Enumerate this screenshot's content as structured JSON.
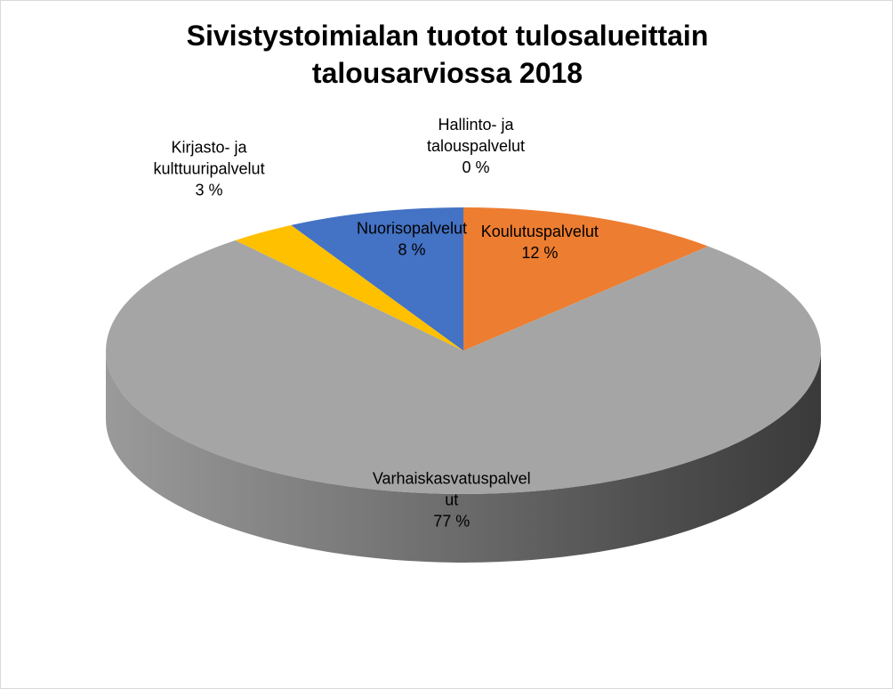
{
  "chart_data": {
    "type": "pie",
    "title_lines": [
      "Sivistystoimialan tuotot tulosalueittain",
      "talousarviossa 2018"
    ],
    "slices": [
      {
        "name": "Koulutuspalvelut",
        "label_lines": [
          "Koulutuspalvelut"
        ],
        "value": 12,
        "value_label": "12 %",
        "color": "#ED7D31"
      },
      {
        "name": "Varhaiskasvatuspalvelut",
        "label_lines": [
          "Varhaiskasvatuspalvel",
          "ut"
        ],
        "value": 77,
        "value_label": "77 %",
        "color": "#A5A5A5"
      },
      {
        "name": "Kirjasto- ja kulttuuripalvelut",
        "label_lines": [
          "Kirjasto- ja",
          "kulttuuripalvelut"
        ],
        "value": 3,
        "value_label": "3 %",
        "color": "#FFC000"
      },
      {
        "name": "Nuorisopalvelut",
        "label_lines": [
          "Nuorisopalvelut"
        ],
        "value": 8,
        "value_label": "8 %",
        "color": "#4472C4"
      },
      {
        "name": "Hallinto- ja talouspalvelut",
        "label_lines": [
          "Hallinto- ja",
          "talouspalvelut"
        ],
        "value": 0,
        "value_label": "0 %",
        "color": "#5B9BD5"
      }
    ],
    "legend": "none"
  }
}
